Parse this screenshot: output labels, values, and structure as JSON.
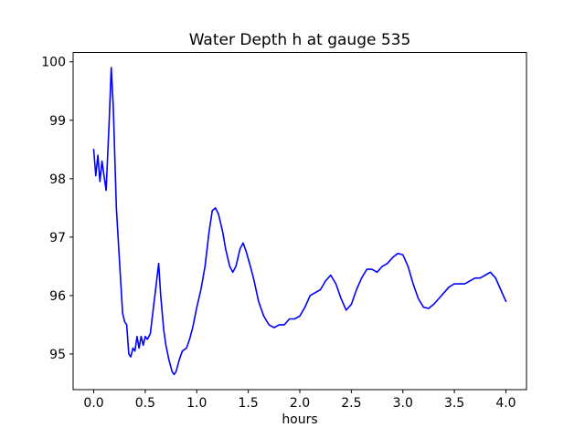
{
  "chart_data": {
    "type": "line",
    "title": "Water Depth h at gauge 535",
    "xlabel": "hours",
    "ylabel": "",
    "grid": false,
    "legend": null,
    "line_color": "#0000ff",
    "axis_color": "#000000",
    "background_color": "#ffffff",
    "xlim": [
      -0.2,
      4.2
    ],
    "ylim": [
      94.39,
      100.16
    ],
    "x_ticks": [
      0.0,
      0.5,
      1.0,
      1.5,
      2.0,
      2.5,
      3.0,
      3.5,
      4.0
    ],
    "x_tick_labels": [
      "0.0",
      "0.5",
      "1.0",
      "1.5",
      "2.0",
      "2.5",
      "3.0",
      "3.5",
      "4.0"
    ],
    "y_ticks": [
      95,
      96,
      97,
      98,
      99,
      100
    ],
    "y_tick_labels": [
      "95",
      "96",
      "97",
      "98",
      "99",
      "100"
    ],
    "x": [
      0.0,
      0.02,
      0.04,
      0.06,
      0.08,
      0.1,
      0.12,
      0.15,
      0.17,
      0.19,
      0.22,
      0.25,
      0.28,
      0.3,
      0.32,
      0.34,
      0.36,
      0.38,
      0.4,
      0.42,
      0.44,
      0.46,
      0.48,
      0.5,
      0.52,
      0.55,
      0.58,
      0.6,
      0.63,
      0.65,
      0.68,
      0.7,
      0.73,
      0.76,
      0.78,
      0.8,
      0.83,
      0.86,
      0.9,
      0.93,
      0.96,
      1.0,
      1.04,
      1.08,
      1.12,
      1.15,
      1.18,
      1.21,
      1.25,
      1.28,
      1.32,
      1.35,
      1.38,
      1.42,
      1.45,
      1.48,
      1.52,
      1.55,
      1.6,
      1.65,
      1.7,
      1.75,
      1.8,
      1.85,
      1.9,
      1.95,
      2.0,
      2.05,
      2.1,
      2.15,
      2.2,
      2.25,
      2.3,
      2.35,
      2.4,
      2.45,
      2.5,
      2.55,
      2.6,
      2.65,
      2.7,
      2.75,
      2.8,
      2.85,
      2.9,
      2.95,
      3.0,
      3.05,
      3.1,
      3.15,
      3.2,
      3.25,
      3.3,
      3.35,
      3.4,
      3.45,
      3.5,
      3.55,
      3.6,
      3.65,
      3.7,
      3.75,
      3.8,
      3.85,
      3.9,
      3.95,
      4.0
    ],
    "y": [
      98.5,
      98.05,
      98.4,
      97.95,
      98.3,
      98.05,
      97.8,
      99.0,
      99.9,
      99.2,
      97.5,
      96.6,
      95.7,
      95.55,
      95.5,
      95.0,
      94.95,
      95.1,
      95.05,
      95.3,
      95.1,
      95.3,
      95.15,
      95.3,
      95.25,
      95.35,
      95.8,
      96.1,
      96.55,
      96.0,
      95.4,
      95.15,
      94.9,
      94.7,
      94.65,
      94.7,
      94.9,
      95.05,
      95.1,
      95.25,
      95.45,
      95.8,
      96.1,
      96.5,
      97.1,
      97.45,
      97.5,
      97.4,
      97.1,
      96.8,
      96.5,
      96.4,
      96.5,
      96.8,
      96.9,
      96.75,
      96.5,
      96.3,
      95.9,
      95.65,
      95.5,
      95.45,
      95.5,
      95.5,
      95.6,
      95.6,
      95.65,
      95.8,
      96.0,
      96.05,
      96.1,
      96.25,
      96.35,
      96.2,
      95.95,
      95.75,
      95.85,
      96.1,
      96.3,
      96.45,
      96.45,
      96.4,
      96.5,
      96.55,
      96.65,
      96.72,
      96.7,
      96.5,
      96.2,
      95.95,
      95.8,
      95.78,
      95.85,
      95.95,
      96.05,
      96.15,
      96.2,
      96.2,
      96.2,
      96.25,
      96.3,
      96.3,
      96.35,
      96.4,
      96.3,
      96.1,
      95.9
    ]
  }
}
